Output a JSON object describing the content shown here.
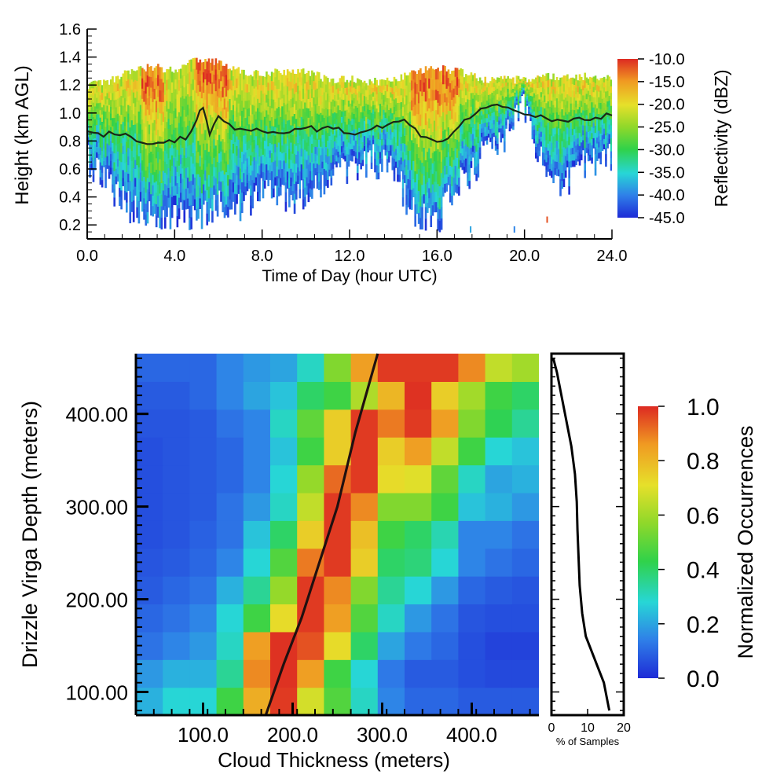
{
  "chart_data": [
    {
      "type": "heatmap",
      "title": "",
      "xlabel": "Time of Day (hour UTC)",
      "ylabel": "Height (km AGL)",
      "xlim": [
        0,
        24
      ],
      "ylim": [
        0.1,
        1.6
      ],
      "x_ticks": [
        "0.0",
        "4.0",
        "8.0",
        "12.0",
        "16.0",
        "20.0",
        "24.0"
      ],
      "x_tick_values": [
        0,
        4,
        8,
        12,
        16,
        20,
        24
      ],
      "y_ticks": [
        "0.2",
        "0.4",
        "0.6",
        "0.8",
        "1.0",
        "1.2",
        "1.4",
        "1.6"
      ],
      "y_tick_values": [
        0.2,
        0.4,
        0.6,
        0.8,
        1.0,
        1.2,
        1.4,
        1.6
      ],
      "colorbar": {
        "label": "Reflectivity (dBZ)",
        "range": [
          -45,
          -10
        ],
        "ticks": [
          "-10.0",
          "-15.0",
          "-20.0",
          "-25.0",
          "-30.0",
          "-35.0",
          "-40.0",
          "-45.0"
        ],
        "tick_values": [
          -10,
          -15,
          -20,
          -25,
          -30,
          -35,
          -40,
          -45
        ]
      },
      "cloud_top_km": [
        [
          0,
          1.2
        ],
        [
          1,
          1.22
        ],
        [
          2,
          1.3
        ],
        [
          3,
          1.33
        ],
        [
          4,
          1.3
        ],
        [
          5,
          1.38
        ],
        [
          6,
          1.36
        ],
        [
          7,
          1.3
        ],
        [
          8,
          1.27
        ],
        [
          9,
          1.3
        ],
        [
          10,
          1.3
        ],
        [
          11,
          1.24
        ],
        [
          12,
          1.24
        ],
        [
          13,
          1.22
        ],
        [
          14,
          1.24
        ],
        [
          15,
          1.3
        ],
        [
          16,
          1.32
        ],
        [
          17,
          1.3
        ],
        [
          18,
          1.24
        ],
        [
          19,
          1.24
        ],
        [
          20,
          1.24
        ],
        [
          21,
          1.26
        ],
        [
          22,
          1.26
        ],
        [
          23,
          1.26
        ],
        [
          24,
          1.24
        ]
      ],
      "max_echo_depth_km": [
        [
          0,
          0.55
        ],
        [
          1,
          0.35
        ],
        [
          2,
          0.2
        ],
        [
          3,
          0.12
        ],
        [
          4,
          0.18
        ],
        [
          5,
          0.15
        ],
        [
          6,
          0.2
        ],
        [
          7,
          0.2
        ],
        [
          8,
          0.3
        ],
        [
          9,
          0.25
        ],
        [
          10,
          0.3
        ],
        [
          11,
          0.4
        ],
        [
          12,
          0.45
        ],
        [
          13,
          0.55
        ],
        [
          14,
          0.45
        ],
        [
          15,
          0.15
        ],
        [
          16,
          0.12
        ],
        [
          17,
          0.35
        ],
        [
          18,
          0.55
        ],
        [
          19,
          0.7
        ],
        [
          20,
          0.95
        ],
        [
          21,
          0.4
        ],
        [
          22,
          0.4
        ],
        [
          23,
          0.55
        ],
        [
          24,
          0.55
        ]
      ],
      "high_reflectivity_bands_hour": [
        [
          2.5,
          3.5
        ],
        [
          5.0,
          6.5
        ],
        [
          14.8,
          17.0
        ]
      ],
      "cloud_base_series": {
        "x": [
          0,
          0.5,
          1,
          1.5,
          2,
          2.5,
          3,
          3.5,
          4,
          4.5,
          5,
          5.3,
          5.6,
          6,
          6.5,
          7,
          7.5,
          8,
          8.5,
          9,
          9.5,
          10,
          10.5,
          11,
          11.5,
          12,
          12.5,
          13,
          13.5,
          14,
          14.5,
          15,
          15.5,
          16,
          16.5,
          17,
          17.5,
          18,
          18.5,
          19,
          19.5,
          20,
          20.5,
          21,
          21.5,
          22,
          22.5,
          23,
          23.5,
          24
        ],
        "y": [
          0.88,
          0.85,
          0.86,
          0.84,
          0.83,
          0.8,
          0.78,
          0.79,
          0.8,
          0.82,
          0.95,
          1.05,
          0.85,
          0.98,
          0.92,
          0.88,
          0.86,
          0.87,
          0.85,
          0.86,
          0.89,
          0.9,
          0.88,
          0.9,
          0.91,
          0.85,
          0.86,
          0.89,
          0.9,
          0.93,
          0.95,
          0.88,
          0.83,
          0.8,
          0.82,
          0.9,
          0.97,
          1.03,
          1.05,
          1.04,
          1.03,
          1.0,
          0.97,
          0.95,
          0.94,
          0.94,
          0.96,
          0.95,
          0.97,
          0.98
        ]
      }
    },
    {
      "type": "heatmap",
      "title": "",
      "xlabel": "Cloud Thickness (meters)",
      "ylabel": "Drizzle Virga Depth (meters)",
      "x_ticks": [
        "100.0",
        "200.0",
        "300.0",
        "400.0"
      ],
      "x_tick_values": [
        100,
        200,
        300,
        400
      ],
      "y_ticks": [
        "100.00",
        "200.00",
        "300.00",
        "400.00"
      ],
      "y_tick_values": [
        100,
        200,
        300,
        400
      ],
      "xlim": [
        25,
        475
      ],
      "ylim": [
        75,
        465
      ],
      "x_bin_centers": [
        40,
        70,
        100,
        130,
        160,
        190,
        220,
        250,
        280,
        310,
        340,
        370,
        400,
        430,
        460
      ],
      "y_bin_centers": [
        90,
        120,
        150,
        180,
        210,
        240,
        270,
        300,
        330,
        360,
        390,
        420,
        450
      ],
      "z": [
        [
          0.22,
          0.28,
          0.28,
          0.45,
          0.82,
          0.98,
          0.68,
          0.48,
          0.3,
          0.15,
          0.1,
          0.1,
          0.08,
          0.08,
          0.08
        ],
        [
          0.18,
          0.22,
          0.22,
          0.35,
          0.88,
          0.99,
          0.85,
          0.45,
          0.28,
          0.13,
          0.08,
          0.08,
          0.06,
          0.05,
          0.05
        ],
        [
          0.12,
          0.15,
          0.18,
          0.3,
          0.85,
          0.99,
          0.95,
          0.72,
          0.4,
          0.2,
          0.13,
          0.1,
          0.06,
          0.04,
          0.04
        ],
        [
          0.1,
          0.12,
          0.15,
          0.28,
          0.45,
          0.72,
          0.98,
          0.85,
          0.48,
          0.3,
          0.18,
          0.12,
          0.07,
          0.06,
          0.06
        ],
        [
          0.08,
          0.1,
          0.12,
          0.22,
          0.35,
          0.58,
          0.98,
          0.88,
          0.55,
          0.35,
          0.28,
          0.18,
          0.1,
          0.08,
          0.07
        ],
        [
          0.07,
          0.08,
          0.1,
          0.15,
          0.28,
          0.48,
          0.9,
          0.98,
          0.75,
          0.4,
          0.38,
          0.28,
          0.15,
          0.12,
          0.1
        ],
        [
          0.06,
          0.07,
          0.09,
          0.12,
          0.25,
          0.4,
          0.75,
          0.98,
          0.78,
          0.45,
          0.4,
          0.32,
          0.15,
          0.15,
          0.12
        ],
        [
          0.06,
          0.07,
          0.08,
          0.12,
          0.18,
          0.3,
          0.65,
          0.98,
          0.88,
          0.55,
          0.55,
          0.45,
          0.25,
          0.22,
          0.18
        ],
        [
          0.06,
          0.07,
          0.08,
          0.1,
          0.15,
          0.28,
          0.58,
          0.92,
          0.98,
          0.72,
          0.7,
          0.5,
          0.3,
          0.2,
          0.22
        ],
        [
          0.06,
          0.07,
          0.08,
          0.1,
          0.15,
          0.25,
          0.45,
          0.75,
          0.98,
          0.75,
          0.85,
          0.65,
          0.45,
          0.28,
          0.25
        ],
        [
          0.07,
          0.07,
          0.08,
          0.12,
          0.15,
          0.3,
          0.5,
          0.75,
          0.98,
          0.9,
          0.98,
          0.85,
          0.55,
          0.42,
          0.35
        ],
        [
          0.08,
          0.08,
          0.1,
          0.15,
          0.2,
          0.25,
          0.4,
          0.45,
          0.62,
          0.8,
          0.99,
          0.75,
          0.6,
          0.45,
          0.4
        ],
        [
          0.1,
          0.1,
          0.1,
          0.15,
          0.18,
          0.2,
          0.3,
          0.55,
          0.85,
          0.98,
          0.98,
          0.98,
          0.88,
          0.65,
          0.6
        ]
      ],
      "colorbar": {
        "label": "Normalized Occurrences",
        "range": [
          0,
          1
        ],
        "ticks": [
          "1.0",
          "0.8",
          "0.6",
          "0.4",
          "0.2",
          "0.0"
        ],
        "tick_values": [
          1.0,
          0.8,
          0.6,
          0.4,
          0.2,
          0.0
        ]
      },
      "fit_curve": {
        "x": [
          170,
          190,
          210,
          230,
          250,
          270,
          295
        ],
        "y": [
          75,
          130,
          180,
          240,
          300,
          380,
          465
        ]
      }
    },
    {
      "type": "line",
      "title": "",
      "xlabel": "% of Samples",
      "ylabel": "",
      "x_ticks": [
        "0",
        "10",
        "20"
      ],
      "x_tick_values": [
        0,
        10,
        20
      ],
      "xlim": [
        0,
        20
      ],
      "ylim": [
        75,
        465
      ],
      "series": [
        {
          "x": [
            16,
            14.5,
            12,
            9.5,
            8.5,
            7.8,
            7.5,
            7.2,
            7.0,
            6.5,
            5.5,
            4.0,
            2.5,
            1.5,
            0.5
          ],
          "y": [
            80,
            110,
            135,
            160,
            185,
            215,
            245,
            275,
            305,
            335,
            365,
            395,
            425,
            445,
            460
          ]
        }
      ]
    }
  ]
}
